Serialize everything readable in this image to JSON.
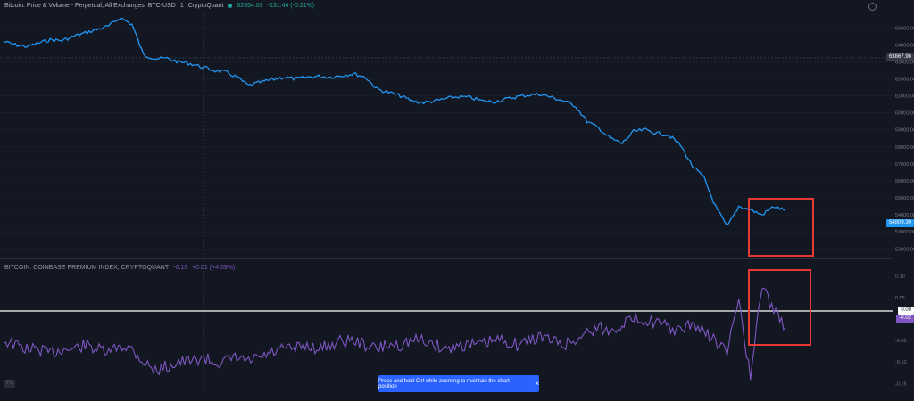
{
  "legend": {
    "price_title": "Bitcoin: Price & Volume - Perpetual, All Exchanges, BTC-USD",
    "interval": "1",
    "source": "CryptoQuant",
    "price_value": "62854.03",
    "price_change": "-131.44 (-0.21%)",
    "premium_title": "BITCOIN: COINBASE PREMIUM INDEX, CRYPTOQUANT",
    "premium_value": "-0.13",
    "premium_change": "+0.01 (+4.59%)"
  },
  "toast": {
    "message": "Press and hold Ctrl while zooming to maintain the chart position",
    "close_label": "×"
  },
  "tv_logo_label": "TV",
  "colors": {
    "background": "#131722",
    "price_line": "#2196f3",
    "premium_line": "#7e57c2",
    "highlight_box": "#e53935",
    "zero_line": "#ffffff"
  },
  "chart_data": [
    {
      "type": "line",
      "title": "Bitcoin: Price & Volume - Perpetual, All Exchanges, BTC-USD",
      "y_axis_ticks": [
        "65000.00",
        "64000.00",
        "63000.00",
        "62000.00",
        "61000.00",
        "60000.00",
        "59000.00",
        "58000.00",
        "57000.00",
        "56000.00",
        "55000.00",
        "54000.00",
        "53000.00",
        "52000.00"
      ],
      "ylim": [
        51700,
        65800
      ],
      "crosshair_label": "63867.96",
      "last_price_label": "54809.30",
      "series": [
        {
          "values": [
            64200,
            64000,
            63900,
            64100,
            64300,
            64250,
            64500,
            64700,
            64900,
            65100,
            65600,
            65200,
            63400,
            63200,
            63200,
            63000,
            62900,
            62700,
            62500,
            62400,
            62100,
            61600,
            61800,
            61950,
            62100,
            62000,
            62100,
            62150,
            62100,
            62200,
            62300,
            62100,
            61400,
            61200,
            61000,
            60700,
            60600,
            60700,
            60850,
            60950,
            60900,
            60700,
            60650,
            60800,
            60950,
            61050,
            61100,
            60900,
            60700,
            60400,
            59500,
            59100,
            58500,
            58200,
            58900,
            59000,
            58800,
            58700,
            58100,
            56900,
            56200,
            54500,
            53300,
            54500,
            54300,
            54000,
            54500,
            54250
          ]
        }
      ]
    },
    {
      "type": "line",
      "title": "BITCOIN: COINBASE PREMIUM INDEX, CRYPTOQUANT",
      "y_axis_ticks": [
        "0.10",
        "0.05",
        "-0.05",
        "-0.10",
        "-0.15"
      ],
      "ylim": [
        -0.17,
        0.12
      ],
      "zero_line_label": "0.00",
      "current_label": "-0.02",
      "series": [
        {
          "values": [
            -0.05,
            -0.06,
            -0.07,
            -0.07,
            -0.08,
            -0.07,
            -0.07,
            -0.06,
            -0.07,
            -0.08,
            -0.06,
            -0.07,
            -0.1,
            -0.12,
            -0.11,
            -0.1,
            -0.1,
            -0.09,
            -0.1,
            -0.1,
            -0.09,
            -0.1,
            -0.09,
            -0.08,
            -0.07,
            -0.07,
            -0.06,
            -0.07,
            -0.06,
            -0.05,
            -0.05,
            -0.06,
            -0.07,
            -0.06,
            -0.06,
            -0.05,
            -0.05,
            -0.06,
            -0.07,
            -0.06,
            -0.06,
            -0.06,
            -0.05,
            -0.05,
            -0.06,
            -0.05,
            -0.04,
            -0.05,
            -0.06,
            -0.05,
            -0.03,
            -0.02,
            -0.03,
            -0.01,
            0.0,
            0.0,
            -0.01,
            -0.02,
            -0.03,
            -0.01,
            -0.03,
            -0.05,
            -0.08,
            0.05,
            -0.14,
            0.08,
            0.02,
            -0.02
          ]
        }
      ]
    }
  ]
}
